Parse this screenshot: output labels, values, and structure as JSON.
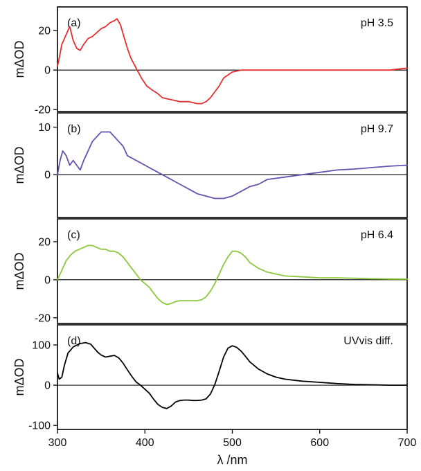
{
  "chart_data": [
    {
      "type": "line",
      "label": "(a)",
      "condition": "pH 3.5",
      "ylabel": "mΔOD",
      "xlabel": "",
      "ylim": [
        -21,
        32
      ],
      "yticks": [
        -20,
        0,
        20
      ],
      "xlim": [
        300,
        700
      ],
      "color": "#e62e2e",
      "series": [
        {
          "x": [
            300,
            302,
            305,
            310,
            314,
            318,
            322,
            326,
            330,
            335,
            340,
            345,
            350,
            355,
            360,
            365,
            368,
            372,
            376,
            380,
            384,
            390,
            396,
            402,
            408,
            415,
            420,
            430,
            440,
            450,
            460,
            465,
            470,
            475,
            480,
            485,
            490,
            500,
            510,
            520,
            540,
            560,
            580,
            600,
            620,
            640,
            660,
            680,
            690,
            700
          ],
          "y": [
            2,
            6,
            13,
            18,
            22,
            15,
            11,
            10,
            13,
            16,
            17,
            19,
            21,
            22,
            24,
            25,
            26,
            23,
            17,
            11,
            6,
            1,
            -4,
            -8,
            -10,
            -12,
            -14,
            -15,
            -16,
            -16,
            -17,
            -17,
            -16,
            -14,
            -11,
            -8,
            -4,
            -1,
            0,
            0,
            0,
            0,
            0,
            0,
            0,
            0,
            0,
            0,
            0.5,
            1
          ]
        }
      ]
    },
    {
      "type": "line",
      "label": "(b)",
      "condition": "pH 9.7",
      "ylabel": "mΔOD",
      "xlabel": "",
      "ylim": [
        -9,
        13
      ],
      "yticks": [
        0,
        10
      ],
      "xlim": [
        300,
        700
      ],
      "color": "#6650b0",
      "series": [
        {
          "x": [
            300,
            303,
            306,
            310,
            314,
            318,
            322,
            326,
            330,
            335,
            340,
            345,
            350,
            355,
            360,
            365,
            370,
            375,
            380,
            390,
            400,
            410,
            420,
            430,
            440,
            450,
            460,
            470,
            480,
            490,
            500,
            510,
            520,
            530,
            540,
            560,
            580,
            600,
            620,
            640,
            660,
            680,
            700
          ],
          "y": [
            0,
            3,
            5,
            4,
            2,
            3,
            2,
            1,
            3,
            5,
            7,
            8,
            9,
            9,
            9,
            8,
            7,
            6,
            4,
            3,
            2,
            1,
            0,
            -1,
            -2,
            -3,
            -4,
            -4.5,
            -5,
            -5,
            -4.5,
            -3.5,
            -2.5,
            -2,
            -1,
            -0.5,
            0,
            0.5,
            1,
            1.2,
            1.5,
            1.8,
            2
          ]
        }
      ]
    },
    {
      "type": "line",
      "label": "(c)",
      "condition": "pH 6.4",
      "ylabel": "mΔOD",
      "xlabel": "",
      "ylim": [
        -23,
        32
      ],
      "yticks": [
        -20,
        0,
        20
      ],
      "xlim": [
        300,
        700
      ],
      "color": "#8cc83c",
      "series": [
        {
          "x": [
            300,
            305,
            310,
            315,
            320,
            325,
            330,
            335,
            340,
            345,
            350,
            355,
            360,
            365,
            370,
            375,
            380,
            385,
            390,
            395,
            400,
            405,
            410,
            415,
            420,
            425,
            430,
            435,
            440,
            450,
            460,
            465,
            470,
            475,
            480,
            485,
            490,
            495,
            500,
            505,
            510,
            515,
            520,
            530,
            540,
            550,
            560,
            580,
            600,
            620,
            640,
            660,
            680,
            700
          ],
          "y": [
            0,
            5,
            10,
            13,
            15,
            16,
            17,
            18,
            18,
            17,
            16,
            16,
            15,
            15,
            14,
            12,
            9,
            6,
            3,
            0,
            -2,
            -4,
            -7,
            -10,
            -12,
            -13,
            -12.5,
            -11.5,
            -11,
            -11,
            -11,
            -10.5,
            -9,
            -6,
            -2,
            3,
            8,
            12,
            15,
            15,
            14,
            12,
            9,
            6,
            4,
            3,
            2,
            1.5,
            1,
            1,
            0.8,
            0.5,
            0.4,
            0.3
          ]
        }
      ]
    },
    {
      "type": "line",
      "label": "(d)",
      "condition": "UVvis diff.",
      "ylabel": "mΔOD",
      "xlabel": "λ /nm",
      "ylim": [
        -110,
        150
      ],
      "yticks": [
        -100,
        0,
        100
      ],
      "xlim": [
        300,
        700
      ],
      "xticks": [
        300,
        400,
        500,
        600,
        700
      ],
      "color": "#000000",
      "series": [
        {
          "x": [
            300,
            302,
            305,
            308,
            312,
            318,
            325,
            332,
            338,
            342,
            346,
            350,
            355,
            360,
            365,
            370,
            375,
            380,
            385,
            390,
            395,
            400,
            405,
            410,
            415,
            420,
            425,
            430,
            435,
            440,
            445,
            450,
            455,
            460,
            465,
            470,
            475,
            480,
            485,
            490,
            495,
            500,
            505,
            510,
            515,
            520,
            530,
            540,
            550,
            560,
            580,
            600,
            620,
            640,
            660,
            680,
            700
          ],
          "y": [
            30,
            15,
            20,
            50,
            80,
            95,
            103,
            106,
            102,
            92,
            82,
            75,
            70,
            72,
            74,
            68,
            55,
            38,
            22,
            8,
            0,
            -10,
            -20,
            -35,
            -48,
            -55,
            -58,
            -52,
            -42,
            -38,
            -37,
            -37,
            -38,
            -38,
            -37,
            -34,
            -22,
            2,
            35,
            70,
            92,
            98,
            94,
            85,
            72,
            58,
            40,
            28,
            20,
            15,
            10,
            7,
            4,
            2,
            1,
            0,
            0
          ]
        }
      ]
    }
  ]
}
